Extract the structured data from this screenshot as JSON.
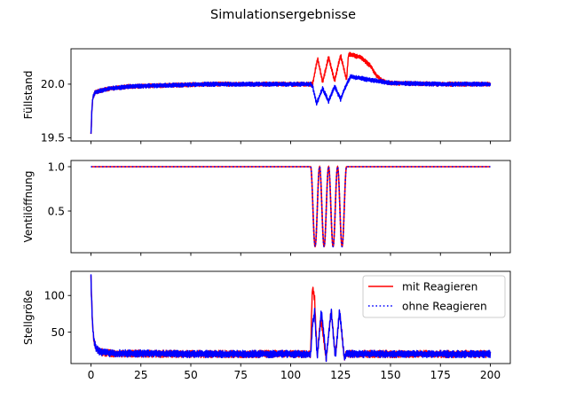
{
  "figure": {
    "suptitle": "Simulationsergebnisse",
    "colors": {
      "mit": "#ff0000",
      "ohne": "#0000ff"
    }
  },
  "chart_data": [
    {
      "type": "line",
      "title": "",
      "xlabel": "",
      "ylabel": "Füllstand",
      "xlim": [
        -10,
        210
      ],
      "ylim": [
        19.47,
        20.33
      ],
      "xticks": [
        0,
        25,
        50,
        75,
        100,
        125,
        150,
        175,
        200
      ],
      "xticklabels": [
        "",
        "",
        "",
        "",
        "",
        "",
        "",
        "",
        ""
      ],
      "yticks": [
        19.5,
        20.0
      ],
      "yticklabels": [
        "19.5",
        "20.0"
      ],
      "grid": false,
      "series": [
        {
          "name": "mit Reagieren",
          "style": "solid",
          "x": [
            0,
            0.5,
            1,
            2,
            3,
            5,
            10,
            20,
            40,
            60,
            80,
            100,
            110,
            111,
            113.5,
            116,
            119,
            122,
            125,
            128,
            129,
            131,
            135,
            140,
            143,
            146,
            150,
            175,
            200
          ],
          "y": [
            19.52,
            19.78,
            19.88,
            19.92,
            19.93,
            19.94,
            19.96,
            19.98,
            19.99,
            20.0,
            20.0,
            20.0,
            20.0,
            20.0,
            20.24,
            20.02,
            20.25,
            20.03,
            20.27,
            20.04,
            20.28,
            20.27,
            20.25,
            20.17,
            20.08,
            20.03,
            20.01,
            20.0,
            20.0
          ],
          "band": 0.02
        },
        {
          "name": "ohne Reagieren",
          "style": "dotted",
          "x": [
            0,
            0.5,
            1,
            2,
            3,
            5,
            10,
            20,
            40,
            60,
            80,
            100,
            110,
            111,
            113,
            116,
            119,
            122,
            125,
            128,
            130,
            140,
            150,
            175,
            200
          ],
          "y": [
            19.52,
            19.78,
            19.88,
            19.92,
            19.93,
            19.94,
            19.96,
            19.98,
            19.99,
            20.0,
            20.0,
            20.0,
            20.0,
            19.98,
            19.82,
            19.96,
            19.84,
            19.98,
            19.86,
            20.0,
            20.07,
            20.04,
            20.01,
            20.0,
            20.0
          ],
          "band": 0.02
        }
      ]
    },
    {
      "type": "line",
      "title": "",
      "xlabel": "",
      "ylabel": "Ventilöffnung",
      "xlim": [
        -10,
        210
      ],
      "ylim": [
        0.03,
        1.07
      ],
      "xticks": [
        0,
        25,
        50,
        75,
        100,
        125,
        150,
        175,
        200
      ],
      "xticklabels": [
        "",
        "",
        "",
        "",
        "",
        "",
        "",
        "",
        ""
      ],
      "yticks": [
        0.5,
        1.0
      ],
      "yticklabels": [
        "0.5",
        "1.0"
      ],
      "grid": false,
      "series": [
        {
          "name": "mit Reagieren",
          "style": "solid",
          "function": "valve",
          "x_range": [
            0,
            200
          ],
          "segment": {
            "start": 110,
            "end": 128,
            "period": 4.5,
            "low": 0.1,
            "high": 1.0
          }
        },
        {
          "name": "ohne Reagieren",
          "style": "dotted",
          "function": "valve",
          "x_range": [
            0,
            200
          ],
          "segment": {
            "start": 110,
            "end": 128,
            "period": 4.5,
            "low": 0.1,
            "high": 1.0
          }
        }
      ]
    },
    {
      "type": "line",
      "title": "",
      "xlabel": "",
      "ylabel": "Stellgröße",
      "xlim": [
        -10,
        210
      ],
      "ylim": [
        7,
        133
      ],
      "xticks": [
        0,
        25,
        50,
        75,
        100,
        125,
        150,
        175,
        200
      ],
      "xticklabels": [
        "0",
        "25",
        "50",
        "75",
        "100",
        "125",
        "150",
        "175",
        "200"
      ],
      "yticks": [
        50,
        100
      ],
      "yticklabels": [
        "50",
        "100"
      ],
      "grid": false,
      "legend": {
        "position": "upper right",
        "entries": [
          "mit Reagieren",
          "ohne Reagieren"
        ]
      },
      "series": [
        {
          "name": "mit Reagieren",
          "style": "solid",
          "x": [
            0,
            0.3,
            0.8,
            1.5,
            2.5,
            4,
            6,
            10,
            50,
            100,
            110,
            110.5,
            111,
            112,
            113.3,
            115,
            117.8,
            120.3,
            122.4,
            124.5,
            126.8,
            128,
            130,
            150,
            175,
            200
          ],
          "y": [
            125,
            95,
            60,
            38,
            28,
            24,
            22,
            21,
            20,
            20,
            20,
            80,
            112,
            95,
            15,
            70,
            15,
            80,
            15,
            80,
            15,
            20,
            20,
            20,
            20,
            20
          ],
          "band": 5
        },
        {
          "name": "ohne Reagieren",
          "style": "dotted",
          "x": [
            0,
            0.3,
            0.8,
            1.5,
            2.5,
            4,
            6,
            10,
            50,
            100,
            110,
            111,
            112,
            113.3,
            115.4,
            117.8,
            120.3,
            122.4,
            124.5,
            126.8,
            128,
            130,
            150,
            175,
            200
          ],
          "y": [
            125,
            95,
            60,
            38,
            28,
            24,
            22,
            21,
            20,
            20,
            20,
            60,
            78,
            15,
            80,
            15,
            80,
            15,
            80,
            15,
            20,
            20,
            20,
            20,
            20
          ],
          "band": 5
        }
      ]
    }
  ]
}
